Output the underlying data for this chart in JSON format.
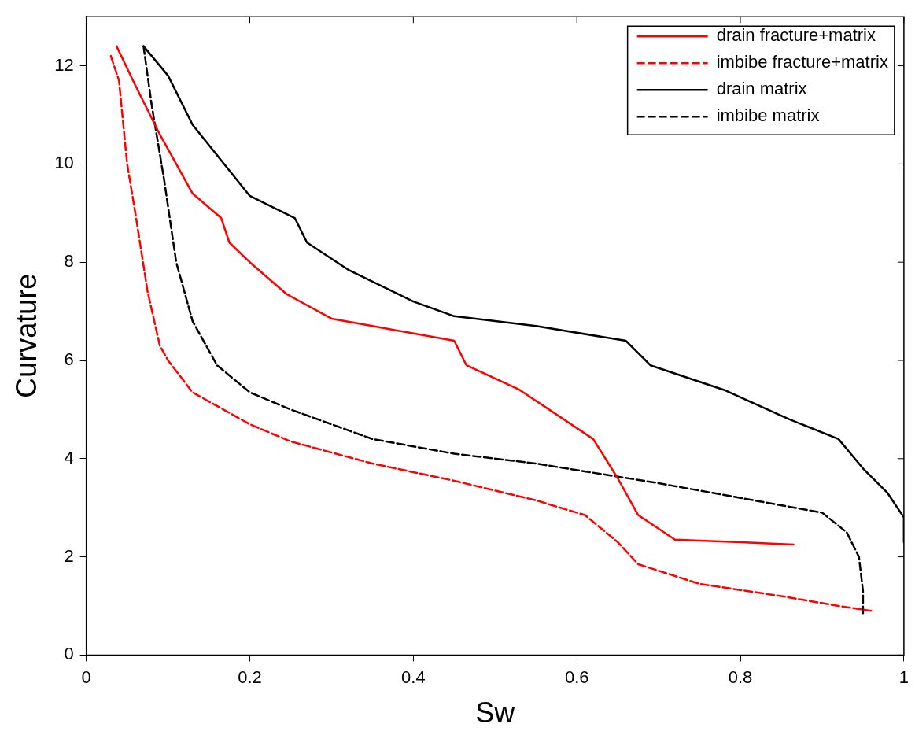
{
  "chart_data": {
    "type": "line",
    "xlabel": "Sw",
    "ylabel": "Curvature",
    "xlim": [
      0,
      1
    ],
    "ylim": [
      0,
      13
    ],
    "xticks": [
      0,
      0.2,
      0.4,
      0.6,
      0.8,
      1
    ],
    "yticks": [
      0,
      2,
      4,
      6,
      8,
      10,
      12
    ],
    "grid": false,
    "legend": "top right",
    "series": [
      {
        "name": "drain fracture+matrix",
        "color": "#ff0000",
        "line_style": "solid",
        "x": [
          0.037,
          0.06,
          0.09,
          0.13,
          0.165,
          0.175,
          0.2,
          0.245,
          0.3,
          0.35,
          0.45,
          0.465,
          0.53,
          0.62,
          0.65,
          0.675,
          0.72,
          0.8,
          0.865
        ],
        "values": [
          12.4,
          11.6,
          10.6,
          9.4,
          8.9,
          8.4,
          8.0,
          7.35,
          6.85,
          6.7,
          6.4,
          5.9,
          5.4,
          4.4,
          3.6,
          2.85,
          2.35,
          2.3,
          2.25
        ]
      },
      {
        "name": "imbibe fracture+matrix",
        "color": "#ff0000",
        "line_style": "dashed",
        "x": [
          0.03,
          0.04,
          0.05,
          0.06,
          0.075,
          0.09,
          0.1,
          0.13,
          0.2,
          0.25,
          0.35,
          0.45,
          0.55,
          0.61,
          0.65,
          0.675,
          0.75,
          0.85,
          0.92,
          0.96
        ],
        "values": [
          12.2,
          11.7,
          10.0,
          9.0,
          7.4,
          6.3,
          6.0,
          5.35,
          4.7,
          4.35,
          3.9,
          3.55,
          3.15,
          2.85,
          2.3,
          1.85,
          1.45,
          1.2,
          1.0,
          0.9
        ]
      },
      {
        "name": "drain matrix",
        "color": "#000000",
        "line_style": "solid",
        "x": [
          0.07,
          0.1,
          0.13,
          0.2,
          0.255,
          0.27,
          0.32,
          0.4,
          0.45,
          0.55,
          0.66,
          0.69,
          0.78,
          0.86,
          0.92,
          0.95,
          0.98,
          1.0,
          1.0
        ],
        "values": [
          12.4,
          11.8,
          10.8,
          9.35,
          8.9,
          8.4,
          7.85,
          7.2,
          6.9,
          6.7,
          6.4,
          5.9,
          5.4,
          4.8,
          4.4,
          3.8,
          3.3,
          2.8,
          2.3
        ]
      },
      {
        "name": "imbibe matrix",
        "color": "#000000",
        "line_style": "dashed",
        "x": [
          0.07,
          0.08,
          0.095,
          0.11,
          0.13,
          0.16,
          0.2,
          0.25,
          0.35,
          0.45,
          0.55,
          0.7,
          0.8,
          0.9,
          0.93,
          0.945,
          0.95,
          0.95
        ],
        "values": [
          12.4,
          11.2,
          9.7,
          8.0,
          6.8,
          5.9,
          5.35,
          5.0,
          4.4,
          4.1,
          3.9,
          3.5,
          3.2,
          2.9,
          2.5,
          2.0,
          1.3,
          0.85
        ]
      }
    ]
  }
}
